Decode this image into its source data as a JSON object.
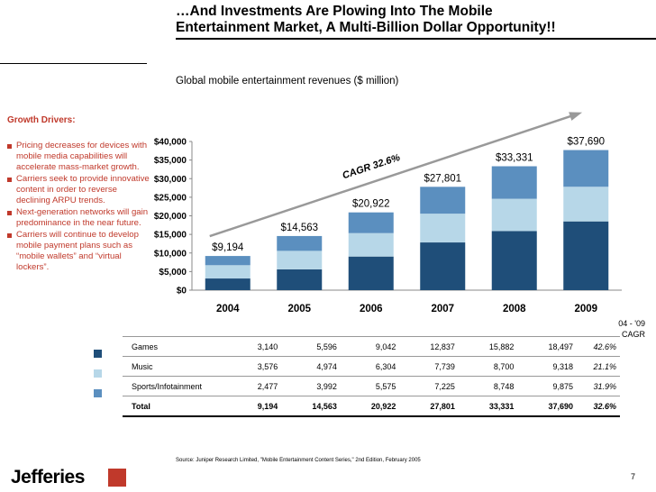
{
  "header": {
    "title_line1": "…And Investments Are Plowing Into The Mobile",
    "title_line2": "Entertainment Market, A Multi-Billion Dollar Opportunity!!",
    "subtitle": "Global mobile entertainment revenues ($ million)"
  },
  "growth_drivers": {
    "title": "Growth Drivers:",
    "items": [
      "Pricing decreases for devices with mobile media capabilities will accelerate mass-market growth.",
      "Carriers seek to provide innovative content in order to reverse declining ARPU trends.",
      "Next-generation networks will gain predominance in the near future.",
      "Carriers will continue to develop mobile payment plans such as “mobile wallets” and “virtual lockers”."
    ]
  },
  "chart_data": {
    "type": "bar",
    "stacked": true,
    "categories": [
      "2004",
      "2005",
      "2006",
      "2007",
      "2008",
      "2009"
    ],
    "series": [
      {
        "name": "Games",
        "values": [
          3140,
          5596,
          9042,
          12837,
          15882,
          18497
        ],
        "color": "#1f4e79"
      },
      {
        "name": "Music",
        "values": [
          3576,
          4974,
          6304,
          7739,
          8700,
          9318
        ],
        "color": "#b7d7e8"
      },
      {
        "name": "Sports/Infotainment",
        "values": [
          2477,
          3992,
          5575,
          7225,
          8748,
          9875
        ],
        "color": "#5b8fbf"
      }
    ],
    "total_labels": [
      "$9,194",
      "$14,563",
      "$20,922",
      "$27,801",
      "$33,331",
      "$37,690"
    ],
    "y_ticks": [
      "$0",
      "$5,000",
      "$10,000",
      "$15,000",
      "$20,000",
      "$25,000",
      "$30,000",
      "$35,000",
      "$40,000"
    ],
    "ylim": [
      0,
      40000
    ],
    "annotation": "CAGR 32.6%",
    "title": "Global mobile entertainment revenues ($ million)"
  },
  "table": {
    "cagr_header_line1": "04 - '09",
    "cagr_header_line2": "CAGR",
    "rows": [
      {
        "label": "Games",
        "values": [
          "3,140",
          "5,596",
          "9,042",
          "12,837",
          "15,882",
          "18,497"
        ],
        "cagr": "42.6%"
      },
      {
        "label": "Music",
        "values": [
          "3,576",
          "4,974",
          "6,304",
          "7,739",
          "8,700",
          "9,318"
        ],
        "cagr": "21.1%"
      },
      {
        "label": "Sports/Infotainment",
        "values": [
          "2,477",
          "3,992",
          "5,575",
          "7,225",
          "8,748",
          "9,875"
        ],
        "cagr": "31.9%"
      },
      {
        "label": "Total",
        "values": [
          "9,194",
          "14,563",
          "20,922",
          "27,801",
          "33,331",
          "37,690"
        ],
        "cagr": "32.6%"
      }
    ]
  },
  "footer": {
    "source": "Source:  Juniper Research Limited, \"Mobile Entertainment Content Series,\" 2nd Edition, February 2005",
    "logo": "Jefferies",
    "page_number": "7"
  },
  "colors": {
    "games": "#1f4e79",
    "music": "#b7d7e8",
    "sports": "#5b8fbf",
    "accent": "#c0392b"
  }
}
